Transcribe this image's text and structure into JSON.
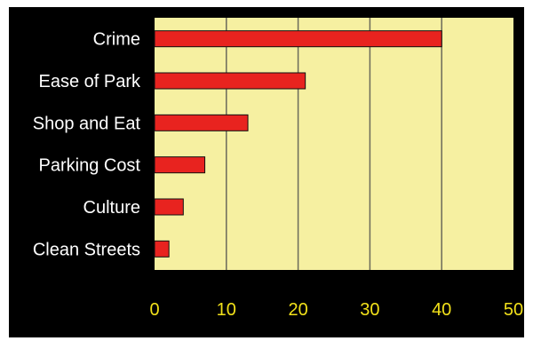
{
  "chart_data": {
    "type": "bar",
    "orientation": "horizontal",
    "categories": [
      "Crime",
      "Ease of Park",
      "Shop and Eat",
      "Parking Cost",
      "Culture",
      "Clean Streets"
    ],
    "values": [
      40,
      21,
      13,
      7,
      4,
      2
    ],
    "title": "",
    "xlabel": "",
    "ylabel": "",
    "xlim": [
      0,
      50
    ],
    "x_ticks": [
      0,
      10,
      20,
      30,
      40,
      50
    ],
    "x_tick_labels": [
      "0",
      "10",
      "20",
      "30",
      "40",
      "50"
    ],
    "grid": "vertical",
    "legend": "none",
    "colors": {
      "background": "#000000",
      "plot_area": "#f6f0a1",
      "bar": "#e8231f",
      "bar_edge": "#111111",
      "grid": "#6b6a5a",
      "category_text": "#ffffff",
      "tick_text": "#f2e11a"
    }
  }
}
